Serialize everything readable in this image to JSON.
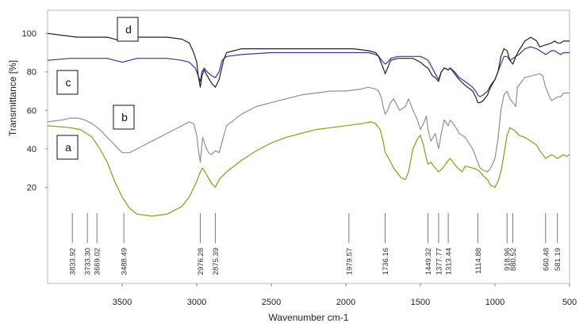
{
  "chart_data": {
    "type": "line",
    "xlabel": "Wavenumber cm-1",
    "ylabel": "Transmittance [%]",
    "xlim": [
      4000,
      500
    ],
    "ylim": [
      -30,
      112
    ],
    "x_ticks": [
      3500,
      3000,
      2500,
      2000,
      1500,
      1000,
      500
    ],
    "y_ticks": [
      20,
      40,
      60,
      80,
      100
    ],
    "grid": false,
    "series": [
      {
        "name": "a",
        "color": "#8a9a1c",
        "x": [
          4000,
          3850,
          3780,
          3700,
          3650,
          3600,
          3550,
          3500,
          3450,
          3400,
          3300,
          3200,
          3100,
          3050,
          3000,
          2976,
          2960,
          2930,
          2900,
          2875,
          2850,
          2800,
          2700,
          2600,
          2500,
          2400,
          2300,
          2200,
          2100,
          2000,
          1900,
          1830,
          1800,
          1770,
          1750,
          1736,
          1720,
          1700,
          1680,
          1650,
          1630,
          1600,
          1580,
          1550,
          1520,
          1500,
          1480,
          1460,
          1449,
          1430,
          1400,
          1378,
          1350,
          1313,
          1300,
          1270,
          1250,
          1220,
          1200,
          1150,
          1115,
          1100,
          1080,
          1050,
          1030,
          1000,
          980,
          960,
          940,
          919,
          900,
          880,
          860,
          840,
          800,
          760,
          720,
          700,
          680,
          660,
          640,
          620,
          600,
          581,
          560,
          540,
          520,
          500
        ],
        "values": [
          52,
          51,
          50,
          46,
          40,
          33,
          23,
          15,
          9,
          6,
          5,
          6,
          10,
          15,
          23,
          28,
          30,
          26,
          22,
          20,
          24,
          28,
          34,
          39,
          43,
          46,
          48,
          50,
          51,
          52,
          53,
          54,
          53,
          50,
          44,
          38,
          36,
          33,
          30,
          27,
          25,
          24,
          28,
          40,
          45,
          47,
          42,
          35,
          32,
          33,
          30,
          28,
          30,
          34,
          35,
          32,
          30,
          28,
          31,
          30,
          29,
          28,
          26,
          24,
          21,
          20,
          23,
          28,
          37,
          47,
          51,
          50,
          49,
          47,
          46,
          44,
          42,
          39,
          37,
          35,
          36,
          37,
          36,
          35,
          36,
          37,
          36,
          37
        ]
      },
      {
        "name": "b",
        "color": "#909090",
        "x": [
          4000,
          3900,
          3850,
          3800,
          3750,
          3700,
          3650,
          3600,
          3550,
          3500,
          3450,
          3400,
          3350,
          3300,
          3250,
          3200,
          3150,
          3100,
          3050,
          3020,
          3000,
          2990,
          2976,
          2960,
          2940,
          2920,
          2900,
          2875,
          2850,
          2800,
          2700,
          2600,
          2500,
          2400,
          2300,
          2200,
          2100,
          2000,
          1900,
          1850,
          1800,
          1780,
          1760,
          1750,
          1736,
          1720,
          1700,
          1680,
          1660,
          1640,
          1600,
          1580,
          1550,
          1520,
          1500,
          1480,
          1460,
          1449,
          1430,
          1400,
          1378,
          1360,
          1340,
          1313,
          1300,
          1270,
          1240,
          1200,
          1150,
          1115,
          1100,
          1080,
          1050,
          1030,
          1000,
          980,
          960,
          940,
          919,
          900,
          880,
          860,
          850,
          820,
          800,
          750,
          700,
          680,
          660,
          640,
          620,
          600,
          581,
          560,
          540,
          500
        ],
        "values": [
          54,
          55,
          56,
          56,
          55,
          53,
          50,
          46,
          42,
          38,
          38,
          40,
          42,
          44,
          46,
          48,
          50,
          52,
          54,
          53,
          47,
          40,
          33,
          46,
          41,
          38,
          37,
          39,
          38,
          52,
          58,
          62,
          64,
          66,
          68,
          69,
          70,
          70,
          71,
          72,
          71,
          70,
          66,
          62,
          58,
          60,
          64,
          66,
          63,
          60,
          62,
          66,
          60,
          55,
          50,
          53,
          57,
          50,
          44,
          48,
          40,
          48,
          55,
          52,
          55,
          52,
          48,
          46,
          40,
          33,
          30,
          29,
          28,
          30,
          35,
          45,
          60,
          68,
          70,
          66,
          64,
          62,
          72,
          75,
          77,
          78,
          79,
          78,
          72,
          68,
          65,
          66,
          67,
          67,
          69,
          69
        ]
      },
      {
        "name": "c",
        "color": "#2e3a9a",
        "x": [
          4000,
          3850,
          3700,
          3600,
          3550,
          3500,
          3450,
          3400,
          3300,
          3200,
          3100,
          3050,
          3010,
          2990,
          2976,
          2965,
          2950,
          2930,
          2900,
          2875,
          2850,
          2830,
          2800,
          2700,
          2500,
          2300,
          2100,
          1900,
          1850,
          1800,
          1780,
          1760,
          1736,
          1720,
          1700,
          1650,
          1600,
          1550,
          1500,
          1470,
          1449,
          1420,
          1400,
          1378,
          1360,
          1340,
          1313,
          1300,
          1270,
          1240,
          1200,
          1150,
          1130,
          1115,
          1100,
          1080,
          1050,
          1030,
          1000,
          980,
          960,
          940,
          919,
          900,
          880,
          860,
          840,
          800,
          760,
          720,
          700,
          660,
          620,
          600,
          581,
          560,
          540,
          520,
          500
        ],
        "values": [
          86,
          87,
          87,
          87,
          86,
          85,
          86,
          87,
          87,
          87,
          86,
          85,
          82,
          78,
          75,
          80,
          82,
          80,
          78,
          77,
          80,
          86,
          88,
          89,
          90,
          90,
          90,
          90,
          90,
          89,
          88,
          86,
          84,
          85,
          87,
          88,
          88,
          88,
          88,
          87,
          86,
          82,
          79,
          76,
          80,
          82,
          81,
          82,
          80,
          77,
          75,
          72,
          70,
          68,
          67,
          68,
          70,
          73,
          76,
          80,
          84,
          88,
          88,
          86,
          87,
          88,
          89,
          92,
          93,
          92,
          91,
          89,
          91,
          91,
          90,
          89,
          90,
          90,
          90
        ]
      },
      {
        "name": "d",
        "color": "#222222",
        "x": [
          4000,
          3900,
          3800,
          3700,
          3600,
          3550,
          3500,
          3450,
          3400,
          3300,
          3200,
          3100,
          3050,
          3020,
          3000,
          2990,
          2976,
          2965,
          2950,
          2930,
          2900,
          2875,
          2850,
          2820,
          2800,
          2700,
          2500,
          2300,
          2100,
          1950,
          1850,
          1800,
          1780,
          1760,
          1740,
          1736,
          1720,
          1700,
          1650,
          1600,
          1550,
          1500,
          1470,
          1449,
          1420,
          1400,
          1378,
          1360,
          1340,
          1313,
          1300,
          1270,
          1240,
          1200,
          1150,
          1130,
          1115,
          1100,
          1080,
          1050,
          1030,
          1000,
          980,
          960,
          940,
          919,
          900,
          880,
          860,
          840,
          800,
          760,
          720,
          700,
          660,
          620,
          600,
          581,
          560,
          540,
          520,
          500
        ],
        "values": [
          100,
          99,
          98,
          98,
          98,
          97,
          96,
          97,
          98,
          98,
          98,
          97,
          95,
          90,
          85,
          78,
          72,
          78,
          81,
          78,
          74,
          72,
          76,
          86,
          90,
          92,
          92,
          92,
          92,
          92,
          91,
          90,
          88,
          84,
          80,
          79,
          82,
          86,
          87,
          87,
          87,
          85,
          83,
          82,
          78,
          77,
          75,
          80,
          82,
          81,
          82,
          79,
          76,
          73,
          70,
          67,
          64,
          64,
          65,
          68,
          72,
          76,
          80,
          88,
          92,
          91,
          86,
          84,
          88,
          91,
          96,
          98,
          96,
          93,
          94,
          95,
          96,
          95,
          95,
          96,
          96,
          96
        ]
      }
    ],
    "series_tags": [
      {
        "series": "d",
        "text": "d"
      },
      {
        "series": "c",
        "text": "c"
      },
      {
        "series": "b",
        "text": "b"
      },
      {
        "series": "a",
        "text": "a"
      }
    ],
    "peaks": [
      {
        "x": 3833.92,
        "label": "3833.92"
      },
      {
        "x": 3733.3,
        "label": "3733.30"
      },
      {
        "x": 3669.02,
        "label": "3669.02"
      },
      {
        "x": 3488.49,
        "label": "3488.49"
      },
      {
        "x": 2976.28,
        "label": "2976.28"
      },
      {
        "x": 2875.39,
        "label": "2875.39"
      },
      {
        "x": 1979.57,
        "label": "1979.57"
      },
      {
        "x": 1736.16,
        "label": "1736.16"
      },
      {
        "x": 1449.32,
        "label": "1449.32"
      },
      {
        "x": 1377.77,
        "label": "1377.77"
      },
      {
        "x": 1313.44,
        "label": "1313.44"
      },
      {
        "x": 1114.88,
        "label": "1114.88"
      },
      {
        "x": 918.96,
        "label": "918.96"
      },
      {
        "x": 880.52,
        "label": "880.52"
      },
      {
        "x": 660.48,
        "label": "660.48"
      },
      {
        "x": 581.19,
        "label": "581.19"
      }
    ]
  }
}
